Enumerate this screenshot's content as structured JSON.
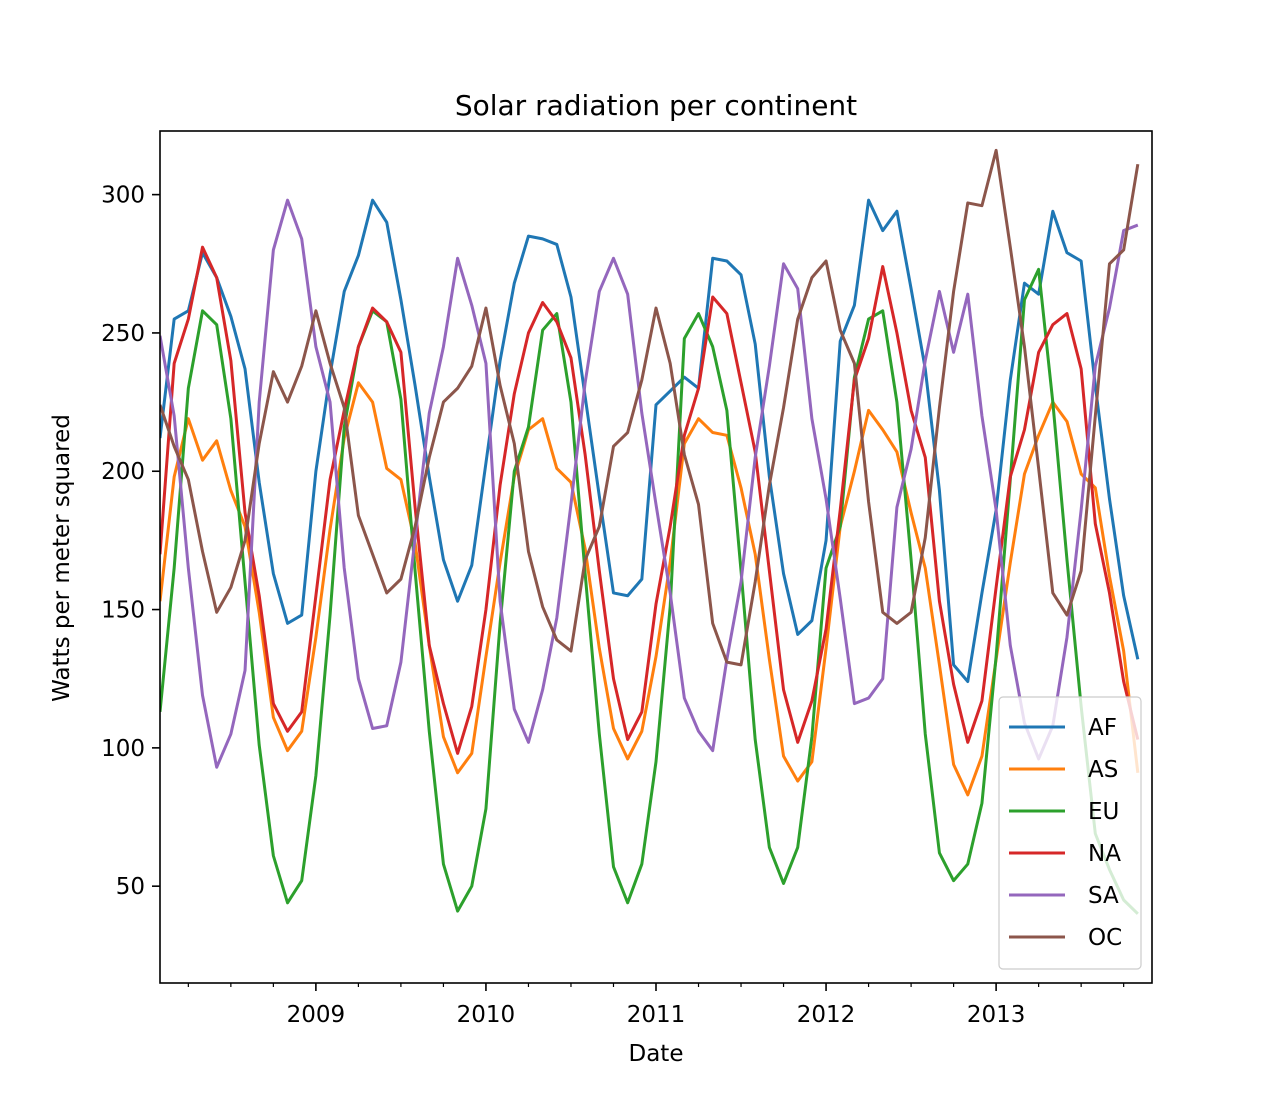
{
  "chart_data": {
    "type": "line",
    "title": "Solar radiation per continent",
    "xlabel": "Date",
    "ylabel": "Watts per meter squared",
    "x_start": "2008-02",
    "x_end": "2013-12",
    "xlim": [
      "2008-02",
      "2013-12"
    ],
    "ylim": [
      15,
      323
    ],
    "xticks": [
      {
        "date": "2009-01",
        "label": "2009"
      },
      {
        "date": "2010-01",
        "label": "2010"
      },
      {
        "date": "2011-01",
        "label": "2011"
      },
      {
        "date": "2012-01",
        "label": "2012"
      },
      {
        "date": "2013-01",
        "label": "2013"
      }
    ],
    "yticks": [
      {
        "value": 50,
        "label": "50"
      },
      {
        "value": 100,
        "label": "100"
      },
      {
        "value": 150,
        "label": "150"
      },
      {
        "value": 200,
        "label": "200"
      },
      {
        "value": 250,
        "label": "250"
      },
      {
        "value": 300,
        "label": "300"
      }
    ],
    "grid": false,
    "legend": "lower-right",
    "series": [
      {
        "name": "AF",
        "color": "#1f77b4",
        "values": [
          212,
          255,
          258,
          279,
          270,
          256,
          237,
          196,
          163,
          145,
          148,
          200,
          235,
          265,
          278,
          298,
          290,
          262,
          231,
          198,
          168,
          153,
          166,
          203,
          240,
          268,
          285,
          284,
          282,
          263,
          227,
          191,
          156,
          155,
          161,
          224,
          229,
          234,
          230,
          277,
          276,
          271,
          246,
          198,
          163,
          141,
          146,
          175,
          247,
          260,
          298,
          287,
          294,
          266,
          237,
          193,
          130,
          124,
          156,
          186,
          233,
          268,
          264,
          294,
          279,
          276,
          231,
          190,
          155,
          132
        ]
      },
      {
        "name": "AS",
        "color": "#ff7f0e",
        "values": [
          153,
          198,
          219,
          204,
          211,
          193,
          180,
          149,
          111,
          99,
          106,
          140,
          179,
          212,
          232,
          225,
          201,
          197,
          174,
          137,
          104,
          91,
          98,
          133,
          167,
          198,
          215,
          219,
          201,
          196,
          172,
          136,
          107,
          96,
          106,
          133,
          167,
          210,
          219,
          214,
          213,
          194,
          170,
          132,
          97,
          88,
          95,
          136,
          180,
          200,
          222,
          215,
          207,
          185,
          165,
          130,
          94,
          83,
          97,
          132,
          167,
          199,
          213,
          225,
          218,
          199,
          194,
          162,
          135,
          91
        ]
      },
      {
        "name": "EU",
        "color": "#2ca02c",
        "values": [
          113,
          165,
          230,
          258,
          253,
          219,
          160,
          101,
          61,
          44,
          52,
          90,
          148,
          216,
          245,
          258,
          254,
          226,
          164,
          106,
          58,
          41,
          50,
          78,
          145,
          200,
          216,
          251,
          257,
          225,
          163,
          105,
          57,
          44,
          58,
          95,
          151,
          248,
          257,
          245,
          222,
          164,
          103,
          64,
          51,
          64,
          104,
          165,
          180,
          234,
          255,
          258,
          225,
          168,
          105,
          62,
          52,
          58,
          80,
          133,
          197,
          262,
          273,
          225,
          168,
          115,
          69,
          56,
          45,
          40
        ]
      },
      {
        "name": "NA",
        "color": "#d62728",
        "values": [
          170,
          239,
          255,
          281,
          270,
          240,
          185,
          155,
          116,
          106,
          113,
          155,
          197,
          222,
          245,
          259,
          254,
          243,
          187,
          137,
          116,
          98,
          115,
          150,
          195,
          228,
          250,
          261,
          254,
          241,
          206,
          164,
          125,
          103,
          113,
          152,
          180,
          213,
          230,
          263,
          257,
          232,
          207,
          164,
          121,
          102,
          117,
          143,
          186,
          233,
          248,
          274,
          250,
          222,
          205,
          153,
          123,
          102,
          117,
          158,
          198,
          215,
          243,
          253,
          257,
          237,
          181,
          156,
          124,
          103
        ]
      },
      {
        "name": "SA",
        "color": "#9467bd",
        "values": [
          249,
          220,
          165,
          119,
          93,
          105,
          128,
          225,
          280,
          298,
          284,
          245,
          225,
          165,
          125,
          107,
          108,
          131,
          176,
          221,
          245,
          277,
          260,
          239,
          153,
          114,
          102,
          121,
          147,
          188,
          232,
          265,
          277,
          264,
          221,
          188,
          156,
          118,
          106,
          99,
          132,
          160,
          205,
          238,
          275,
          266,
          219,
          190,
          154,
          116,
          118,
          125,
          187,
          208,
          240,
          265,
          243,
          264,
          220,
          186,
          137,
          109,
          96,
          108,
          140,
          186,
          238,
          259,
          287,
          289
        ]
      },
      {
        "name": "OC",
        "color": "#8c564b",
        "values": [
          224,
          209,
          197,
          171,
          149,
          158,
          175,
          210,
          236,
          225,
          238,
          258,
          239,
          223,
          184,
          170,
          156,
          161,
          180,
          205,
          225,
          230,
          238,
          259,
          231,
          210,
          171,
          151,
          139,
          135,
          168,
          180,
          209,
          214,
          233,
          259,
          239,
          206,
          188,
          145,
          131,
          130,
          160,
          195,
          223,
          255,
          270,
          276,
          251,
          239,
          189,
          149,
          145,
          149,
          176,
          223,
          265,
          297,
          296,
          316,
          281,
          245,
          201,
          156,
          148,
          164,
          220,
          275,
          280,
          311
        ]
      }
    ]
  }
}
